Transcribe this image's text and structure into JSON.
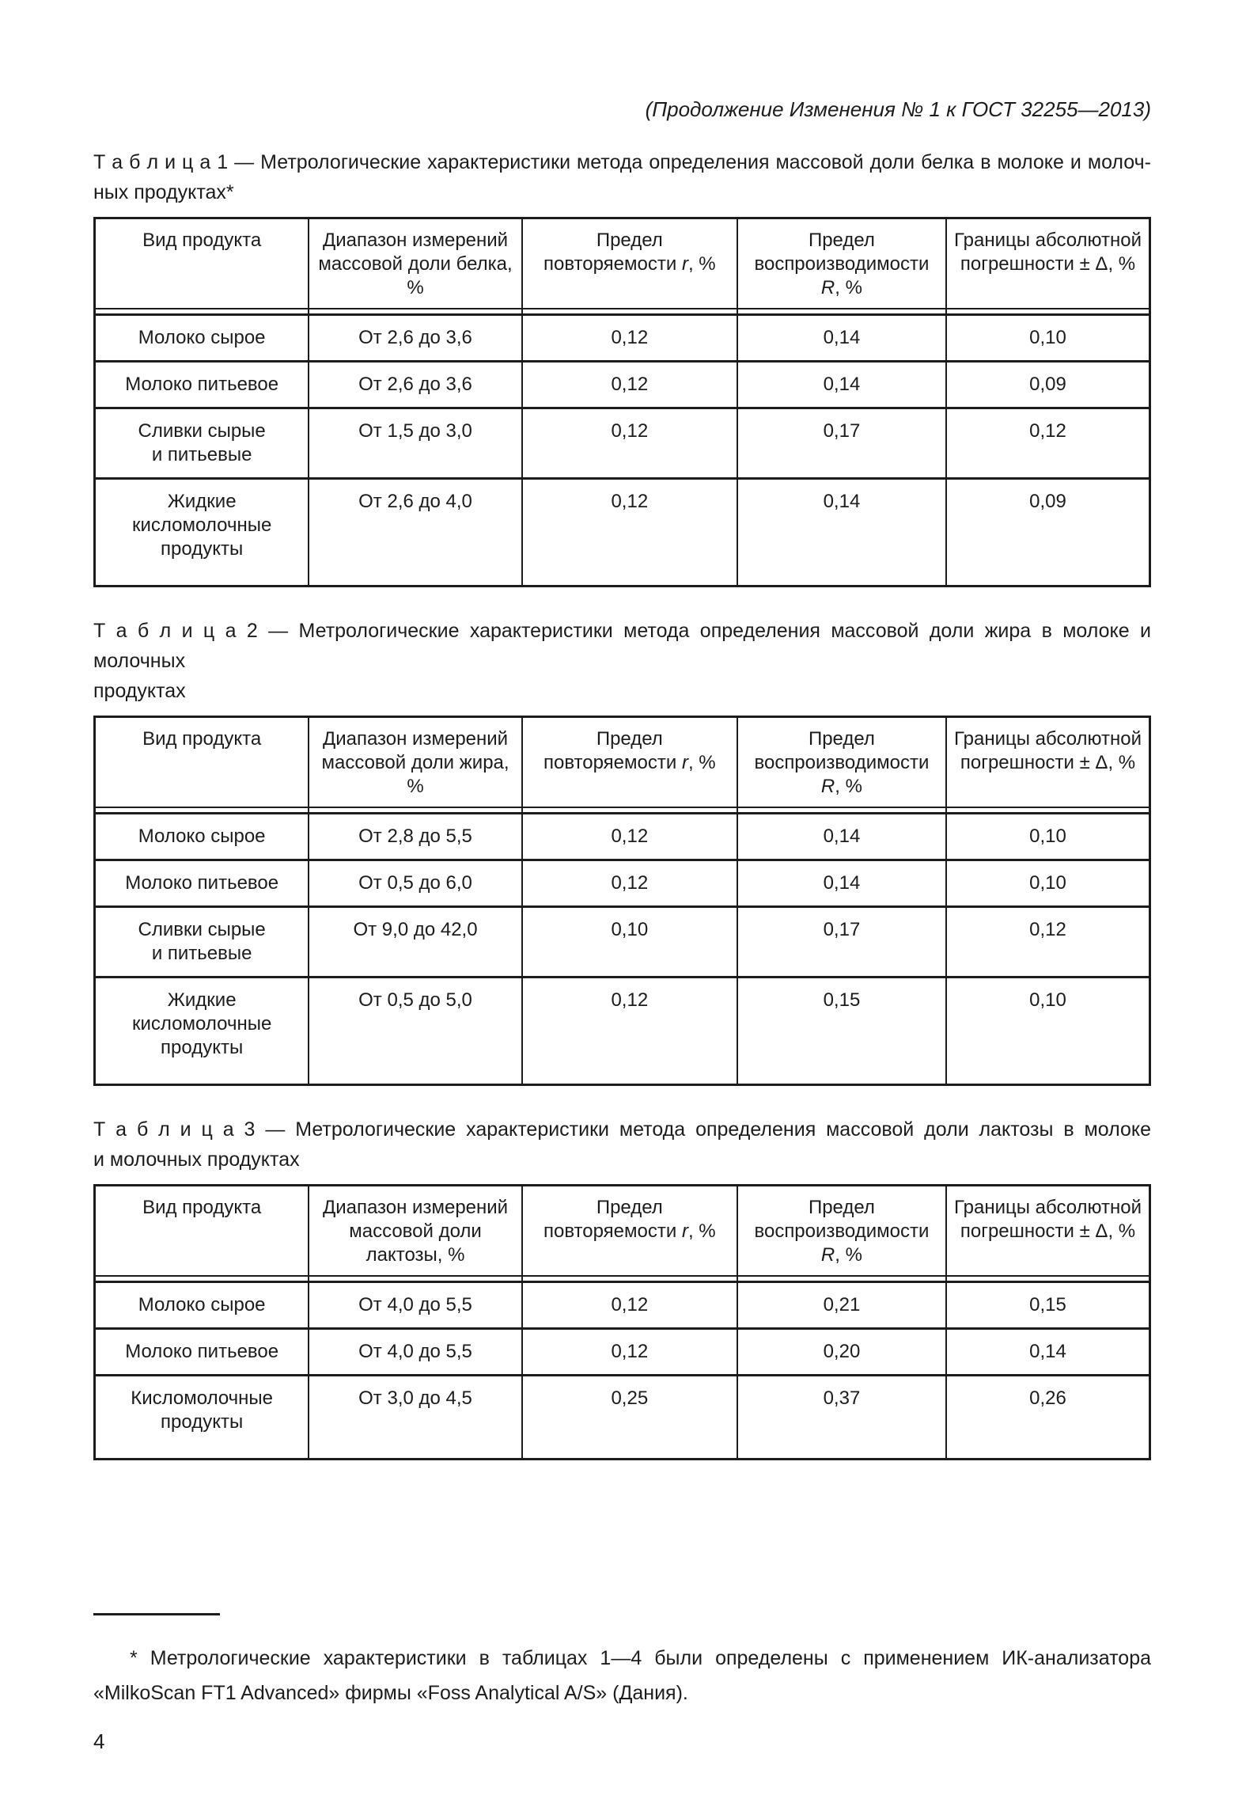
{
  "page": {
    "header_note": "(Продолжение Изменения № 1 к ГОСТ 32255—2013)",
    "number": "4",
    "footnote": {
      "lines": [
        "* Метрологические характеристики в таблицах 1—4 были определены с применением ИК-анализатора",
        "«MilkoScan FT1 Advanced» фирмы «Foss Analytical A/S» (Дания)."
      ]
    }
  },
  "tables": [
    {
      "caption_lines": [
        "Т а б л и ц а 1 — Метрологические характеристики метода определения массовой доли белка в молоке и молоч-",
        "ных продуктах*"
      ],
      "columns": [
        [
          "Вид продукта"
        ],
        [
          "Диапазон измерений",
          "массовой доли белка,",
          "%"
        ],
        [
          "Предел",
          "повторяемости *r*, %"
        ],
        [
          "Предел",
          "воспроизводимости",
          "*R*, %"
        ],
        [
          "Границы абсолютной",
          "погрешности ± Δ, %"
        ]
      ],
      "rows": [
        [
          [
            "Молоко сырое"
          ],
          [
            "От 2,6 до 3,6"
          ],
          [
            "0,12"
          ],
          [
            "0,14"
          ],
          [
            "0,10"
          ]
        ],
        [
          [
            "Молоко питьевое"
          ],
          [
            "От 2,6 до 3,6"
          ],
          [
            "0,12"
          ],
          [
            "0,14"
          ],
          [
            "0,09"
          ]
        ],
        [
          [
            "Сливки сырые",
            "и питьевые"
          ],
          [
            "От 1,5 до 3,0"
          ],
          [
            "0,12"
          ],
          [
            "0,17"
          ],
          [
            "0,12"
          ]
        ],
        [
          [
            "Жидкие",
            "кисломолочные",
            "продукты"
          ],
          [
            "От 2,6 до 4,0"
          ],
          [
            "0,12"
          ],
          [
            "0,14"
          ],
          [
            "0,09"
          ]
        ]
      ]
    },
    {
      "caption_lines": [
        "Т а б л и ц а 2 — Метрологические характеристики метода определения массовой доли жира в молоке и молочных",
        "продуктах"
      ],
      "columns": [
        [
          "Вид продукта"
        ],
        [
          "Диапазон измерений",
          "массовой доли жира,",
          "%"
        ],
        [
          "Предел",
          "повторяемости *r*, %"
        ],
        [
          "Предел",
          "воспроизводимости",
          "*R*, %"
        ],
        [
          "Границы абсолютной",
          "погрешности ± Δ, %"
        ]
      ],
      "rows": [
        [
          [
            "Молоко сырое"
          ],
          [
            "От 2,8 до 5,5"
          ],
          [
            "0,12"
          ],
          [
            "0,14"
          ],
          [
            "0,10"
          ]
        ],
        [
          [
            "Молоко питьевое"
          ],
          [
            "От 0,5 до 6,0"
          ],
          [
            "0,12"
          ],
          [
            "0,14"
          ],
          [
            "0,10"
          ]
        ],
        [
          [
            "Сливки сырые",
            "и питьевые"
          ],
          [
            "От 9,0 до 42,0"
          ],
          [
            "0,10"
          ],
          [
            "0,17"
          ],
          [
            "0,12"
          ]
        ],
        [
          [
            "Жидкие",
            "кисломолочные",
            "продукты"
          ],
          [
            "От 0,5 до 5,0"
          ],
          [
            "0,12"
          ],
          [
            "0,15"
          ],
          [
            "0,10"
          ]
        ]
      ]
    },
    {
      "caption_lines": [
        "Т а б л и ц а 3 — Метрологические характеристики метода определения массовой доли лактозы в молоке",
        "и молочных продуктах"
      ],
      "columns": [
        [
          "Вид продукта"
        ],
        [
          "Диапазон измерений",
          "массовой доли",
          "лактозы, %"
        ],
        [
          "Предел",
          "повторяемости *r*, %"
        ],
        [
          "Предел",
          "воспроизводимости",
          "*R*, %"
        ],
        [
          "Границы абсолютной",
          "погрешности ± Δ, %"
        ]
      ],
      "rows": [
        [
          [
            "Молоко сырое"
          ],
          [
            "От 4,0 до 5,5"
          ],
          [
            "0,12"
          ],
          [
            "0,21"
          ],
          [
            "0,15"
          ]
        ],
        [
          [
            "Молоко питьевое"
          ],
          [
            "От 4,0 до 5,5"
          ],
          [
            "0,12"
          ],
          [
            "0,20"
          ],
          [
            "0,14"
          ]
        ],
        [
          [
            "Кисломолочные",
            "продукты"
          ],
          [
            "От 3,0 до 4,5"
          ],
          [
            "0,25"
          ],
          [
            "0,37"
          ],
          [
            "0,26"
          ]
        ]
      ]
    }
  ]
}
